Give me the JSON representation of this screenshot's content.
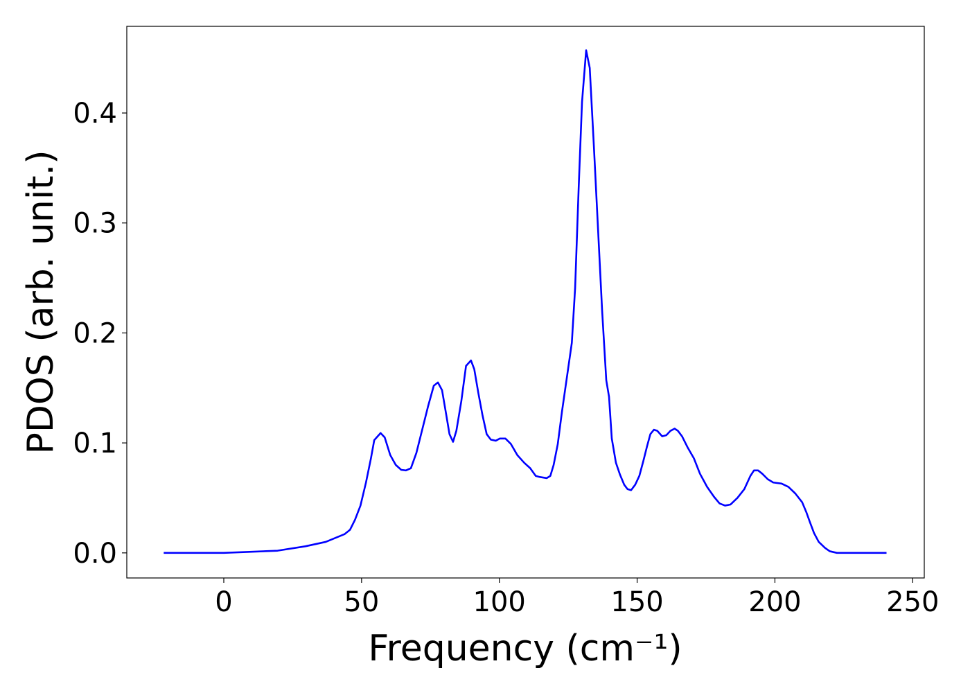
{
  "chart_data": {
    "type": "line",
    "xlabel": "Frequency (cm⁻¹)",
    "ylabel": "PDOS (arb. unit.)",
    "xlim": [
      -35.2,
      254.2
    ],
    "xticks": [
      0,
      50,
      100,
      150,
      200,
      250
    ],
    "ylim": [
      -0.0228,
      0.4788
    ],
    "yticks": [
      {
        "value": 0,
        "label": "0.0"
      },
      0.1,
      0.2,
      0.3,
      0.4
    ],
    "x": [
      -21.8,
      0,
      19.5,
      29.6,
      37,
      43.8,
      45.8,
      47.6,
      49.6,
      51.6,
      53.4,
      54.6,
      56.9,
      58.4,
      60.4,
      62.4,
      64.4,
      66.1,
      67.9,
      69.9,
      71.9,
      74.1,
      76.2,
      77.7,
      79.2,
      80.7,
      81.9,
      83.2,
      84.4,
      86.2,
      87.9,
      89.7,
      90.9,
      92.4,
      93.9,
      95.4,
      96.9,
      98.7,
      100.2,
      102.2,
      104.2,
      106.5,
      109.0,
      111.2,
      113.2,
      114.7,
      117.2,
      118.5,
      119.7,
      121.2,
      122.7,
      124.7,
      126.3,
      127.5,
      128.8,
      130.0,
      131.5,
      132.8,
      134.3,
      135.8,
      137.3,
      138.8,
      139.8,
      140.8,
      142.3,
      143.8,
      145.3,
      146.5,
      147.8,
      149.3,
      150.8,
      152.3,
      153.6,
      154.8,
      156.1,
      157.3,
      159.1,
      160.6,
      162.1,
      163.6,
      164.8,
      166.3,
      168.3,
      170.6,
      172.8,
      175.4,
      177.9,
      179.9,
      181.9,
      183.9,
      186.4,
      188.9,
      191.1,
      192.4,
      193.9,
      195.4,
      197.4,
      199.4,
      202.4,
      204.9,
      207.4,
      209.9,
      211.4,
      212.7,
      214.2,
      215.9,
      218.2,
      219.9,
      222.5,
      240.5
    ],
    "series": [
      {
        "name": "PDOS",
        "color": "#0000ff",
        "values": [
          0,
          0,
          0.002,
          0.006,
          0.01,
          0.017,
          0.021,
          0.03,
          0.043,
          0.064,
          0.086,
          0.1025,
          0.109,
          0.105,
          0.089,
          0.08,
          0.0755,
          0.075,
          0.077,
          0.091,
          0.111,
          0.133,
          0.152,
          0.155,
          0.148,
          0.126,
          0.108,
          0.101,
          0.111,
          0.138,
          0.17,
          0.175,
          0.167,
          0.145,
          0.125,
          0.108,
          0.103,
          0.102,
          0.104,
          0.104,
          0.099,
          0.089,
          0.082,
          0.077,
          0.07,
          0.069,
          0.068,
          0.07,
          0.08,
          0.099,
          0.128,
          0.163,
          0.191,
          0.241,
          0.333,
          0.41,
          0.457,
          0.441,
          0.37,
          0.295,
          0.22,
          0.157,
          0.142,
          0.104,
          0.082,
          0.071,
          0.062,
          0.058,
          0.057,
          0.062,
          0.07,
          0.084,
          0.097,
          0.108,
          0.112,
          0.111,
          0.106,
          0.107,
          0.111,
          0.113,
          0.111,
          0.106,
          0.096,
          0.086,
          0.072,
          0.06,
          0.051,
          0.045,
          0.043,
          0.044,
          0.05,
          0.058,
          0.07,
          0.075,
          0.075,
          0.072,
          0.067,
          0.064,
          0.063,
          0.06,
          0.054,
          0.046,
          0.037,
          0.028,
          0.018,
          0.01,
          0.0045,
          0.0015,
          0,
          0
        ]
      }
    ]
  }
}
